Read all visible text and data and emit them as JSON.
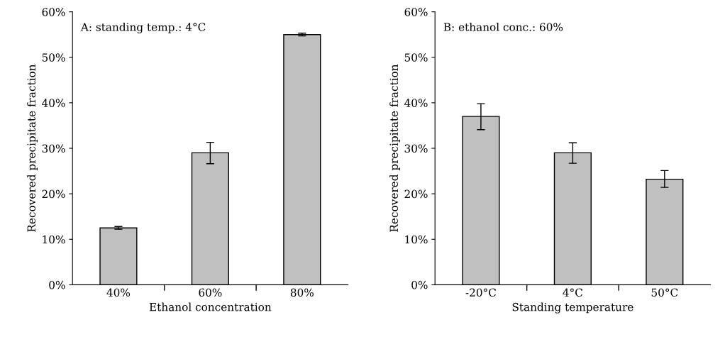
{
  "chart_data": [
    {
      "type": "bar",
      "annotations": [
        "A: standing temp.: 4°C"
      ],
      "xlabel": "Ethanol concentration",
      "ylabel": "Recovered precipitate fraction",
      "categories": [
        "40%",
        "60%",
        "80%"
      ],
      "values": [
        12.5,
        29.0,
        55.0
      ],
      "errors": [
        [
          12.2,
          12.8
        ],
        [
          26.6,
          31.3
        ],
        [
          54.7,
          55.3
        ]
      ],
      "color": "#c0c0c0",
      "ylim": [
        0,
        60
      ],
      "yticks": [
        {
          "value": 0,
          "label": "0%"
        },
        {
          "value": 10,
          "label": "10%"
        },
        {
          "value": 20,
          "label": "20%"
        },
        {
          "value": 30,
          "label": "30%"
        },
        {
          "value": 40,
          "label": "40%"
        },
        {
          "value": 50,
          "label": "50%"
        },
        {
          "value": 60,
          "label": "60%"
        }
      ],
      "grid": false
    },
    {
      "type": "bar",
      "annotations": [
        "B: ethanol conc.: 60%"
      ],
      "xlabel": "Standing temperature",
      "ylabel": "Recovered precipitate fraction",
      "categories": [
        "-20°C",
        "4°C",
        "50°C"
      ],
      "values": [
        37.0,
        29.0,
        23.2
      ],
      "errors": [
        [
          34.1,
          39.8
        ],
        [
          26.7,
          31.2
        ],
        [
          21.4,
          25.1
        ]
      ],
      "color": "#c0c0c0",
      "ylim": [
        0,
        60
      ],
      "yticks": [
        {
          "value": 0,
          "label": "0%"
        },
        {
          "value": 10,
          "label": "10%"
        },
        {
          "value": 20,
          "label": "20%"
        },
        {
          "value": 30,
          "label": "30%"
        },
        {
          "value": 40,
          "label": "40%"
        },
        {
          "value": 50,
          "label": "50%"
        },
        {
          "value": 60,
          "label": "60%"
        }
      ],
      "grid": false
    }
  ]
}
